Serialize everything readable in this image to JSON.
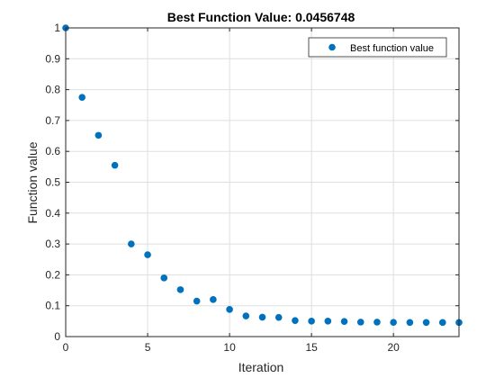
{
  "chart_data": {
    "type": "scatter",
    "title": "Best Function Value: 0.0456748",
    "xlabel": "Iteration",
    "ylabel": "Function value",
    "xlim": [
      0,
      24
    ],
    "ylim": [
      0,
      1
    ],
    "x_ticks": [
      "0",
      "5",
      "10",
      "15",
      "20"
    ],
    "y_ticks": [
      "0",
      "0.1",
      "0.2",
      "0.3",
      "0.4",
      "0.5",
      "0.6",
      "0.7",
      "0.8",
      "0.9",
      "1"
    ],
    "grid": true,
    "legend_position": "top-right",
    "series": [
      {
        "name": "Best function value",
        "color": "#0072BD",
        "x": [
          0,
          1,
          2,
          3,
          4,
          5,
          6,
          7,
          8,
          9,
          10,
          11,
          12,
          13,
          14,
          15,
          16,
          17,
          18,
          19,
          20,
          21,
          22,
          23,
          24
        ],
        "y": [
          1.0,
          0.775,
          0.652,
          0.555,
          0.3,
          0.265,
          0.19,
          0.152,
          0.115,
          0.12,
          0.088,
          0.067,
          0.063,
          0.062,
          0.052,
          0.05,
          0.05,
          0.049,
          0.047,
          0.047,
          0.046,
          0.0459,
          0.0458,
          0.0457,
          0.0457
        ]
      }
    ]
  }
}
